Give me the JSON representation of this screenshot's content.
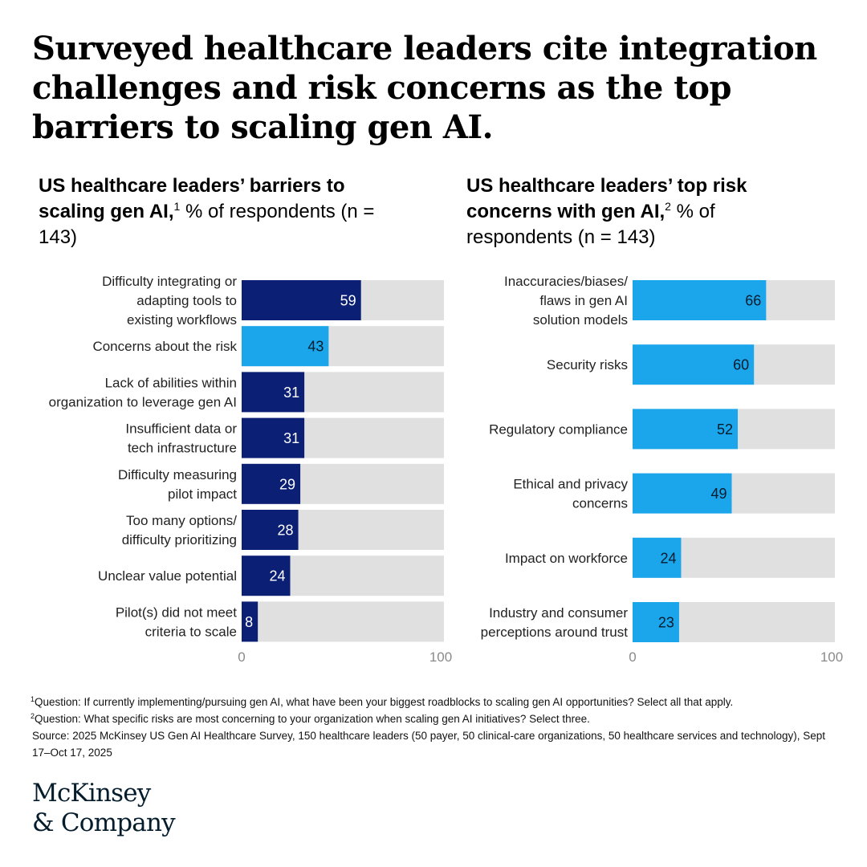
{
  "headline": "Surveyed healthcare leaders cite integration challenges and risk concerns as the top barriers to scaling gen AI.",
  "left_panel": {
    "title_bold": "US healthcare leaders’ barriers to scaling gen AI,",
    "title_sup": "1",
    "title_rest": " % of respondents (n = 143)"
  },
  "right_panel": {
    "title_bold": "US healthcare leaders’ top risk concerns with gen AI,",
    "title_sup": "2",
    "title_rest": " % of respondents (n = 143)"
  },
  "colors": {
    "navy": "#0b1f74",
    "cyan": "#1ba6ec",
    "track": "#e0e0e0"
  },
  "chart_data": [
    {
      "type": "bar",
      "orientation": "horizontal",
      "categories": [
        [
          "Difficulty integrating or",
          "adapting tools to",
          "existing workflows"
        ],
        [
          "Concerns about the risk"
        ],
        [
          "Lack of abilities within",
          "organization to leverage gen AI"
        ],
        [
          "Insufficient data or",
          "tech infrastructure"
        ],
        [
          "Difficulty measuring",
          "pilot impact"
        ],
        [
          "Too many options/",
          "difficulty prioritizing"
        ],
        [
          "Unclear value potential"
        ],
        [
          "Pilot(s) did not meet",
          "criteria to scale"
        ]
      ],
      "values": [
        59,
        43,
        31,
        31,
        29,
        28,
        24,
        8
      ],
      "bar_colors": [
        "navy",
        "cyan",
        "navy",
        "navy",
        "navy",
        "navy",
        "navy",
        "navy"
      ],
      "xlim": [
        0,
        100
      ],
      "x_ticks": [
        "0",
        "100"
      ]
    },
    {
      "type": "bar",
      "orientation": "horizontal",
      "categories": [
        [
          "Inaccuracies/biases/",
          "flaws in gen AI",
          "solution models"
        ],
        [
          "Security risks"
        ],
        [
          "Regulatory compliance"
        ],
        [
          "Ethical and privacy",
          "concerns"
        ],
        [
          "Impact on workforce"
        ],
        [
          "Industry and consumer",
          "perceptions around trust"
        ]
      ],
      "values": [
        66,
        60,
        52,
        49,
        24,
        23
      ],
      "bar_colors": [
        "cyan",
        "cyan",
        "cyan",
        "cyan",
        "cyan",
        "cyan"
      ],
      "xlim": [
        0,
        100
      ],
      "x_ticks": [
        "0",
        "100"
      ]
    }
  ],
  "footnotes": {
    "note1_sup": "1",
    "note1": "Question: If currently implementing/pursuing gen AI, what have been your biggest roadblocks to scaling gen AI opportunities? Select all that apply.",
    "note2_sup": "2",
    "note2": "Question: What specific risks are most concerning to your organization when scaling gen AI initiatives? Select three.",
    "source": "Source: 2025 McKinsey US Gen AI Healthcare Survey, 150 healthcare leaders (50 payer, 50 clinical-care organizations, 50 healthcare services and technology), Sept 17–Oct 17, 2025"
  },
  "logo": {
    "line1": "McKinsey",
    "line2": "& Company"
  }
}
